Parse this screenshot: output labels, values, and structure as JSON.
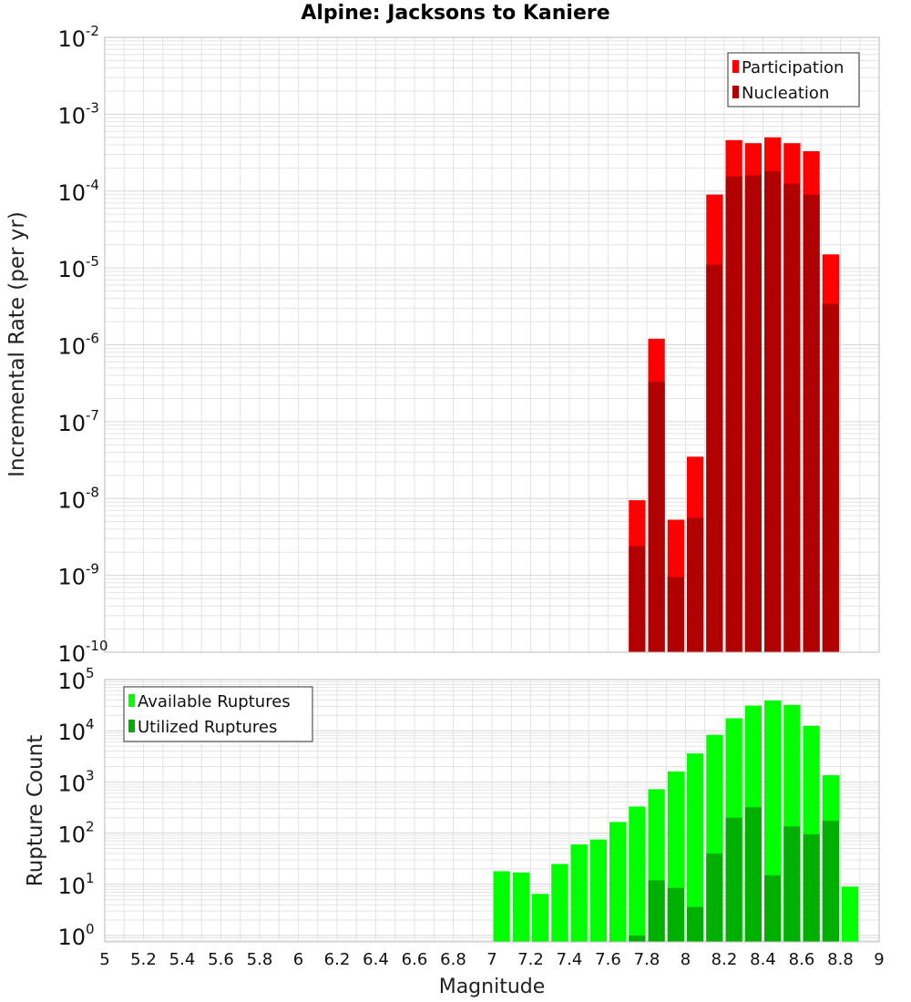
{
  "title": "Alpine: Jacksons to Kaniere",
  "xlabel": "Magnitude",
  "x_ticks": [
    "5",
    "5.2",
    "5.4",
    "5.6",
    "5.8",
    "6",
    "6.2",
    "6.4",
    "6.6",
    "6.8",
    "7",
    "7.2",
    "7.4",
    "7.6",
    "7.8",
    "8",
    "8.2",
    "8.4",
    "8.6",
    "8.8",
    "9"
  ],
  "colors": {
    "participation": "#ff0000",
    "nucleation": "#b00000",
    "available": "#00ff00",
    "utilized": "#00b000",
    "grid": "#e4e4e4",
    "frame": "#bbbbbb"
  },
  "chart_data": [
    {
      "type": "bar",
      "ylabel": "Incremental Rate (per yr)",
      "yscale": "log",
      "ylim": [
        1e-10,
        0.01
      ],
      "y_ticks": [
        {
          "base": "10",
          "exp": "-2"
        },
        {
          "base": "10",
          "exp": "-3"
        },
        {
          "base": "10",
          "exp": "-4"
        },
        {
          "base": "10",
          "exp": "-5"
        },
        {
          "base": "10",
          "exp": "-6"
        },
        {
          "base": "10",
          "exp": "-7"
        },
        {
          "base": "10",
          "exp": "-8"
        },
        {
          "base": "10",
          "exp": "-9"
        },
        {
          "base": "10",
          "exp": "-10"
        }
      ],
      "xlim": [
        5,
        9
      ],
      "bar_width": 0.1,
      "legend": {
        "position": "top-right",
        "entries": [
          "Participation",
          "Nucleation"
        ]
      },
      "series": [
        {
          "name": "Participation",
          "x": [
            7.75,
            7.85,
            7.95,
            8.05,
            8.15,
            8.25,
            8.35,
            8.45,
            8.55,
            8.65,
            8.75
          ],
          "values": [
            9.5e-09,
            1.2e-06,
            5.3e-09,
            3.5e-08,
            9e-05,
            0.00046,
            0.00042,
            0.0005,
            0.00042,
            0.00033,
            1.5e-05
          ]
        },
        {
          "name": "Nucleation",
          "x": [
            7.75,
            7.85,
            7.95,
            8.05,
            8.15,
            8.25,
            8.35,
            8.45,
            8.55,
            8.65,
            8.75
          ],
          "values": [
            2.4e-09,
            3.3e-07,
            9.5e-10,
            5.6e-09,
            1.1e-05,
            0.000155,
            0.00016,
            0.00018,
            0.000125,
            9e-05,
            3.4e-06
          ]
        }
      ]
    },
    {
      "type": "bar",
      "ylabel": "Rupture Count",
      "yscale": "log",
      "ylim": [
        0.75,
        100000
      ],
      "y_ticks": [
        {
          "base": "10",
          "exp": "5"
        },
        {
          "base": "10",
          "exp": "4"
        },
        {
          "base": "10",
          "exp": "3"
        },
        {
          "base": "10",
          "exp": "2"
        },
        {
          "base": "10",
          "exp": "1"
        },
        {
          "base": "10",
          "exp": "0"
        }
      ],
      "xlim": [
        5,
        9
      ],
      "bar_width": 0.1,
      "legend": {
        "position": "top-left",
        "entries": [
          "Available Ruptures",
          "Utilized Ruptures"
        ]
      },
      "series": [
        {
          "name": "Available Ruptures",
          "x": [
            7.05,
            7.15,
            7.25,
            7.35,
            7.45,
            7.55,
            7.65,
            7.75,
            7.85,
            7.95,
            8.05,
            8.15,
            8.25,
            8.35,
            8.45,
            8.55,
            8.65,
            8.75,
            8.85
          ],
          "values": [
            18,
            17,
            6.5,
            25,
            60,
            75,
            165,
            330,
            720,
            1600,
            3600,
            8300,
            17500,
            31000,
            39000,
            32000,
            12500,
            1350,
            9
          ]
        },
        {
          "name": "Utilized Ruptures",
          "x": [
            7.75,
            7.85,
            7.95,
            8.05,
            8.15,
            8.25,
            8.35,
            8.45,
            8.55,
            8.65,
            8.75
          ],
          "values": [
            1,
            12,
            8.5,
            3.6,
            40,
            200,
            320,
            15,
            135,
            95,
            175
          ]
        }
      ]
    }
  ]
}
